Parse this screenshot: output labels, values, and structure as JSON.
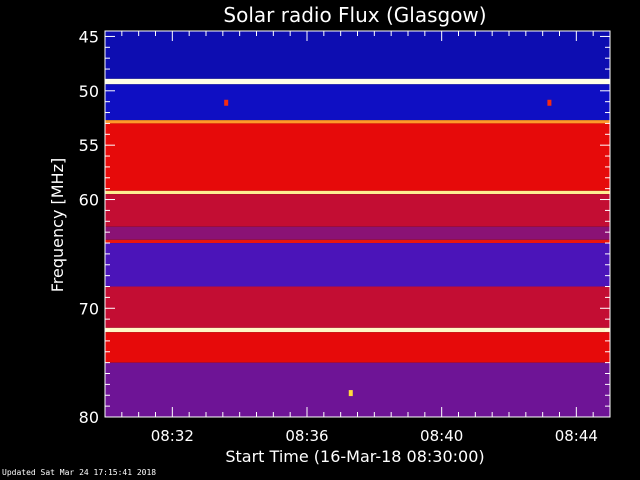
{
  "chart_data": {
    "type": "heatmap",
    "title": "Solar radio Flux (Glasgow)",
    "xlabel": "Start Time (16-Mar-18 08:30:00)",
    "ylabel": "Frequency [MHz]",
    "x_start": "08:30:00",
    "x_end": "08:45:00",
    "x_ticks": [
      "08:32",
      "08:36",
      "08:40",
      "08:44"
    ],
    "x_tick_minutes": [
      2,
      6,
      10,
      14
    ],
    "xlim_minutes": [
      0,
      15
    ],
    "y_ticks": [
      45,
      50,
      55,
      60,
      70,
      80
    ],
    "ylim": [
      44.5,
      80
    ],
    "y_axis_direction": "increasing-downward",
    "colormap": "black-blue-red-yellow-white",
    "bands": [
      {
        "f0": 44.5,
        "f1": 48.9,
        "level": 0.18
      },
      {
        "f0": 48.9,
        "f1": 49.4,
        "level": 1.0
      },
      {
        "f0": 49.4,
        "f1": 52.7,
        "level": 0.2
      },
      {
        "f0": 52.7,
        "f1": 53.0,
        "level": 0.85
      },
      {
        "f0": 53.0,
        "f1": 59.2,
        "level": 0.55
      },
      {
        "f0": 59.2,
        "f1": 59.5,
        "level": 0.95
      },
      {
        "f0": 59.5,
        "f1": 62.5,
        "level": 0.5
      },
      {
        "f0": 62.5,
        "f1": 63.7,
        "level": 0.42
      },
      {
        "f0": 63.7,
        "f1": 64.0,
        "level": 0.6
      },
      {
        "f0": 64.0,
        "f1": 68.0,
        "level": 0.33
      },
      {
        "f0": 68.0,
        "f1": 71.8,
        "level": 0.5
      },
      {
        "f0": 71.8,
        "f1": 72.2,
        "level": 0.98
      },
      {
        "f0": 72.2,
        "f1": 75.0,
        "level": 0.55
      },
      {
        "f0": 75.0,
        "f1": 80.0,
        "level": 0.38
      }
    ],
    "spots": [
      {
        "minute": 3.6,
        "freq": 51.1,
        "level": 0.7
      },
      {
        "minute": 13.2,
        "freq": 51.1,
        "level": 0.7
      },
      {
        "minute": 7.3,
        "freq": 77.8,
        "level": 0.9
      }
    ]
  },
  "footer": {
    "updated": "Updated Sat Mar 24 17:15:41 2018"
  }
}
